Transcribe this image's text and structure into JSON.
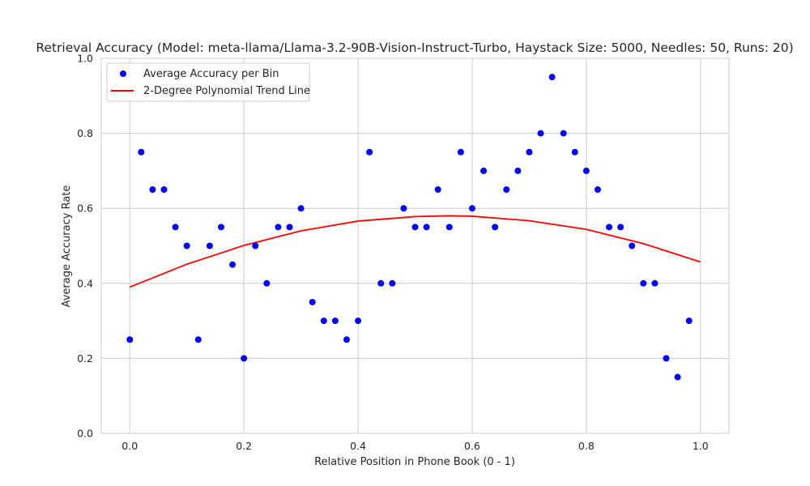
{
  "chart_data": {
    "type": "scatter",
    "title": "Retrieval Accuracy (Model: meta-llama/Llama-3.2-90B-Vision-Instruct-Turbo, Haystack Size: 5000, Needles: 50, Runs: 20)",
    "xlabel": "Relative Position in Phone Book (0 - 1)",
    "ylabel": "Average Accuracy Rate",
    "xlim": [
      -0.05,
      1.05
    ],
    "ylim": [
      0.0,
      1.0
    ],
    "xticks": [
      "0.0",
      "0.2",
      "0.4",
      "0.6",
      "0.8",
      "1.0"
    ],
    "yticks": [
      "0.0",
      "0.2",
      "0.4",
      "0.6",
      "0.8",
      "1.0"
    ],
    "grid": true,
    "legend_position": "top-left",
    "series": [
      {
        "name": "Average Accuracy per Bin",
        "kind": "scatter",
        "color": "#0000ff",
        "x": [
          0.0,
          0.02,
          0.04,
          0.06,
          0.08,
          0.1,
          0.12,
          0.14,
          0.16,
          0.18,
          0.2,
          0.22,
          0.24,
          0.26,
          0.28,
          0.3,
          0.32,
          0.34,
          0.36,
          0.38,
          0.4,
          0.42,
          0.44,
          0.46,
          0.48,
          0.5,
          0.52,
          0.54,
          0.56,
          0.58,
          0.6,
          0.62,
          0.64,
          0.66,
          0.68,
          0.7,
          0.72,
          0.74,
          0.76,
          0.78,
          0.8,
          0.82,
          0.84,
          0.86,
          0.88,
          0.9,
          0.92,
          0.94,
          0.96,
          0.98
        ],
        "y": [
          0.25,
          0.75,
          0.65,
          0.65,
          0.55,
          0.5,
          0.25,
          0.5,
          0.55,
          0.45,
          0.2,
          0.5,
          0.4,
          0.55,
          0.55,
          0.6,
          0.35,
          0.3,
          0.3,
          0.25,
          0.3,
          0.75,
          0.4,
          0.4,
          0.6,
          0.55,
          0.55,
          0.65,
          0.55,
          0.75,
          0.6,
          0.7,
          0.55,
          0.65,
          0.7,
          0.75,
          0.8,
          0.95,
          0.8,
          0.75,
          0.7,
          0.65,
          0.55,
          0.55,
          0.5,
          0.4,
          0.4,
          0.2,
          0.15,
          0.3
        ]
      },
      {
        "name": "2-Degree Polynomial Trend Line",
        "kind": "line",
        "color": "#ff0000",
        "x": [
          0.0,
          0.1,
          0.2,
          0.3,
          0.4,
          0.5,
          0.56,
          0.6,
          0.7,
          0.8,
          0.9,
          1.0
        ],
        "y": [
          0.39,
          0.451,
          0.501,
          0.54,
          0.566,
          0.578,
          0.58,
          0.579,
          0.567,
          0.544,
          0.506,
          0.457
        ]
      }
    ]
  }
}
